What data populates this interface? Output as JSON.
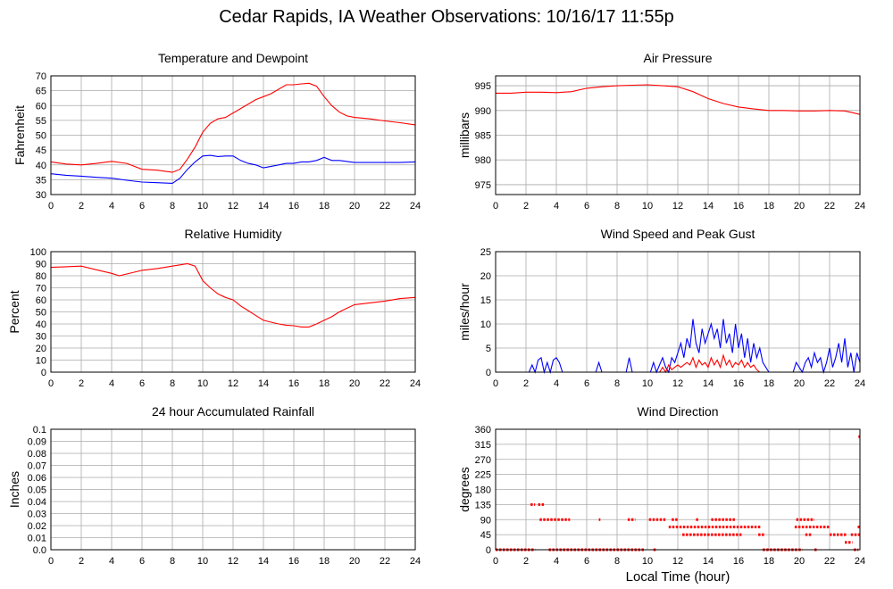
{
  "page": {
    "title": "Cedar Rapids, IA Weather Observations: 10/16/17 11:55p",
    "xlabel": "Local Time (hour)"
  },
  "colors": {
    "red": "#ff0000",
    "blue": "#0000ff",
    "grid": "#aaaaaa",
    "frame": "#000000"
  },
  "chart_data": [
    {
      "id": "temp",
      "type": "line",
      "title": "Temperature and Dewpoint",
      "ylabel": "Fahrenheit",
      "xlim": [
        0,
        24
      ],
      "ylim": [
        30,
        70
      ],
      "yticks": [
        30,
        35,
        40,
        45,
        50,
        55,
        60,
        65,
        70
      ],
      "xticks": [
        0,
        2,
        4,
        6,
        8,
        10,
        12,
        14,
        16,
        18,
        20,
        22,
        24
      ],
      "grid": true,
      "series": [
        {
          "color": "red",
          "x": [
            0,
            1,
            2,
            3,
            4,
            5,
            6,
            7,
            8,
            8.5,
            9,
            9.5,
            10,
            10.5,
            11,
            11.5,
            12,
            12.5,
            13,
            13.5,
            14,
            14.5,
            15,
            15.5,
            16,
            16.5,
            17,
            17.5,
            18,
            18.5,
            19,
            19.5,
            20,
            21,
            22,
            23,
            24
          ],
          "y": [
            41,
            40.3,
            40,
            40.5,
            41.2,
            40.5,
            38.5,
            38.2,
            37.5,
            38.5,
            42,
            46,
            51,
            54,
            55.5,
            56,
            57.5,
            59,
            60.5,
            62,
            63,
            64,
            65.5,
            67,
            67,
            67.3,
            67.5,
            66.5,
            63,
            60,
            57.8,
            56.5,
            56,
            55.5,
            54.8,
            54.2,
            53.5
          ]
        },
        {
          "color": "blue",
          "x": [
            0,
            1,
            2,
            3,
            4,
            5,
            6,
            7,
            8,
            8.5,
            9,
            9.5,
            10,
            10.5,
            11,
            11.5,
            12,
            12.5,
            13,
            13.5,
            14,
            14.5,
            15,
            15.5,
            16,
            16.5,
            17,
            17.5,
            18,
            18.5,
            19,
            20,
            21,
            22,
            23,
            24
          ],
          "y": [
            37,
            36.5,
            36.2,
            35.8,
            35.5,
            34.8,
            34.2,
            34,
            33.8,
            35.5,
            38.5,
            41,
            43,
            43.2,
            42.8,
            43,
            43,
            41.5,
            40.5,
            40,
            39,
            39.5,
            40,
            40.5,
            40.5,
            41,
            41,
            41.5,
            42.5,
            41.5,
            41.5,
            40.8,
            40.8,
            40.8,
            40.8,
            41
          ]
        }
      ]
    },
    {
      "id": "pressure",
      "type": "line",
      "title": "Air Pressure",
      "ylabel": "millibars",
      "xlim": [
        0,
        24
      ],
      "ylim": [
        973,
        997
      ],
      "yticks": [
        975,
        980,
        985,
        990,
        995
      ],
      "xticks": [
        0,
        2,
        4,
        6,
        8,
        10,
        12,
        14,
        16,
        18,
        20,
        22,
        24
      ],
      "grid": true,
      "series": [
        {
          "color": "red",
          "x": [
            0,
            1,
            2,
            3,
            4,
            5,
            6,
            7,
            8,
            9,
            10,
            11,
            12,
            13,
            14,
            15,
            16,
            17,
            18,
            19,
            20,
            21,
            22,
            23,
            24
          ],
          "y": [
            993.5,
            993.5,
            993.7,
            993.7,
            993.6,
            993.8,
            994.5,
            994.8,
            995,
            995.1,
            995.2,
            995,
            994.8,
            993.8,
            992.4,
            991.4,
            990.7,
            990.3,
            990,
            990,
            989.9,
            989.9,
            990,
            989.9,
            989.2
          ]
        }
      ]
    },
    {
      "id": "humidity",
      "type": "line",
      "title": "Relative Humidity",
      "ylabel": "Percent",
      "xlim": [
        0,
        24
      ],
      "ylim": [
        0,
        100
      ],
      "yticks": [
        0,
        10,
        20,
        30,
        40,
        50,
        60,
        70,
        80,
        90,
        100
      ],
      "xticks": [
        0,
        2,
        4,
        6,
        8,
        10,
        12,
        14,
        16,
        18,
        20,
        22,
        24
      ],
      "grid": true,
      "series": [
        {
          "color": "red",
          "x": [
            0,
            1,
            2,
            3,
            4,
            4.5,
            5,
            6,
            7,
            8,
            9,
            9.5,
            10,
            10.5,
            11,
            11.5,
            12,
            12.5,
            13,
            13.5,
            14,
            14.5,
            15,
            15.5,
            16,
            16.5,
            17,
            17.5,
            18,
            18.5,
            19,
            19.5,
            20,
            21,
            22,
            23,
            24
          ],
          "y": [
            87,
            87.5,
            88,
            85,
            82,
            80,
            81.5,
            84.5,
            86,
            88,
            90,
            88,
            76,
            70,
            65,
            62,
            60,
            55,
            51,
            47,
            43,
            41.5,
            40,
            39,
            38.5,
            37.5,
            37.5,
            40,
            43,
            46,
            50,
            53,
            56,
            57.5,
            59,
            61,
            62
          ]
        }
      ]
    },
    {
      "id": "wind",
      "type": "line",
      "title": "Wind Speed and Peak Gust",
      "ylabel": "miles/hour",
      "xlim": [
        0,
        24
      ],
      "ylim": [
        0,
        25
      ],
      "yticks": [
        0,
        5,
        10,
        15,
        20,
        25
      ],
      "xticks": [
        0,
        2,
        4,
        6,
        8,
        10,
        12,
        14,
        16,
        18,
        20,
        22,
        24
      ],
      "grid": true,
      "series": [
        {
          "color": "blue",
          "x": [
            0,
            2.2,
            2.4,
            2.6,
            2.8,
            3,
            3.2,
            3.4,
            3.6,
            3.8,
            4,
            4.2,
            4.4,
            4.6,
            6.6,
            6.8,
            7,
            8.6,
            8.8,
            9,
            10.2,
            10.4,
            10.6,
            10.8,
            11,
            11.2,
            11.4,
            11.6,
            11.8,
            12,
            12.2,
            12.4,
            12.6,
            12.8,
            13,
            13.2,
            13.4,
            13.6,
            13.8,
            14,
            14.2,
            14.4,
            14.6,
            14.8,
            15,
            15.2,
            15.4,
            15.6,
            15.8,
            16,
            16.2,
            16.4,
            16.6,
            16.8,
            17,
            17.2,
            17.4,
            17.6,
            17.8,
            18,
            19.6,
            19.8,
            20,
            20.2,
            20.4,
            20.6,
            20.8,
            21,
            21.2,
            21.4,
            21.6,
            21.8,
            22,
            22.2,
            22.4,
            22.6,
            22.8,
            23,
            23.2,
            23.4,
            23.6,
            23.8,
            24
          ],
          "y": [
            0,
            0,
            1.5,
            0,
            2.5,
            3,
            0,
            2,
            0,
            2.5,
            3,
            2,
            0,
            0,
            0,
            2,
            0,
            0,
            3,
            0,
            0,
            2,
            0,
            1.5,
            3,
            1,
            0,
            3,
            2,
            4,
            6,
            3,
            7,
            5,
            11,
            6,
            4,
            9,
            6,
            8,
            10,
            7,
            9,
            5,
            11,
            6,
            8,
            4,
            10,
            5,
            8,
            3,
            7,
            2,
            6,
            3,
            5,
            2,
            1,
            0,
            0,
            2,
            1,
            0,
            2,
            3,
            1,
            4,
            2,
            3,
            0,
            2,
            5,
            1,
            3,
            6,
            2,
            7,
            1,
            4,
            0,
            4,
            2
          ]
        },
        {
          "color": "red",
          "x": [
            0,
            10.8,
            11,
            11.2,
            11.4,
            11.6,
            11.8,
            12,
            12.2,
            12.4,
            12.6,
            12.8,
            13,
            13.2,
            13.4,
            13.6,
            13.8,
            14,
            14.2,
            14.4,
            14.6,
            14.8,
            15,
            15.2,
            15.4,
            15.6,
            15.8,
            16,
            16.2,
            16.4,
            16.6,
            16.8,
            17,
            17.2,
            17.4,
            24
          ],
          "y": [
            0,
            0,
            1,
            0,
            1.5,
            0.5,
            1,
            1.5,
            1,
            1.5,
            2,
            1.5,
            3,
            1,
            2.5,
            1.5,
            2,
            1,
            3,
            1.5,
            2.5,
            1,
            3.5,
            1.5,
            2.5,
            1,
            2,
            1.5,
            2.5,
            1,
            2,
            1,
            1.5,
            0.5,
            0,
            0
          ]
        }
      ]
    },
    {
      "id": "rain",
      "type": "line",
      "title": "24 hour Accumulated Rainfall",
      "ylabel": "Inches",
      "xlim": [
        0,
        24
      ],
      "ylim": [
        0,
        0.1
      ],
      "yticks": [
        0.0,
        0.01,
        0.02,
        0.03,
        0.04,
        0.05,
        0.06,
        0.07,
        0.08,
        0.09,
        0.1
      ],
      "ytick_labels": [
        "0.0",
        "0.01",
        "0.02",
        "0.03",
        "0.04",
        "0.05",
        "0.06",
        "0.07",
        "0.08",
        "0.09",
        "0.1"
      ],
      "xticks": [
        0,
        2,
        4,
        6,
        8,
        10,
        12,
        14,
        16,
        18,
        20,
        22,
        24
      ],
      "grid": true,
      "series": [
        {
          "color": "red",
          "x": [
            0,
            24
          ],
          "y": [
            0,
            0
          ]
        }
      ]
    },
    {
      "id": "winddir",
      "type": "scatter",
      "title": "Wind Direction",
      "ylabel": "degrees",
      "xlim": [
        0,
        24
      ],
      "ylim": [
        0,
        360
      ],
      "yticks": [
        0,
        45,
        90,
        135,
        180,
        225,
        270,
        315,
        360
      ],
      "xticks": [
        0,
        2,
        4,
        6,
        8,
        10,
        12,
        14,
        16,
        18,
        20,
        22,
        24
      ],
      "grid": true,
      "series": [
        {
          "color": "red",
          "segments": [
            {
              "x0": 0,
              "x1": 2.6,
              "y": 0
            },
            {
              "x0": 2.3,
              "x1": 2.6,
              "y": 135
            },
            {
              "x0": 2.8,
              "x1": 3.2,
              "y": 135
            },
            {
              "x0": 2.9,
              "x1": 4.9,
              "y": 90
            },
            {
              "x0": 3.5,
              "x1": 9.8,
              "y": 0
            },
            {
              "x0": 6.8,
              "x1": 6.9,
              "y": 90
            },
            {
              "x0": 8.7,
              "x1": 9.2,
              "y": 90
            },
            {
              "x0": 10.1,
              "x1": 11.2,
              "y": 90
            },
            {
              "x0": 10.4,
              "x1": 10.6,
              "y": 0
            },
            {
              "x0": 11.4,
              "x1": 17.5,
              "y": 68
            },
            {
              "x0": 11.6,
              "x1": 12.0,
              "y": 90
            },
            {
              "x0": 12.3,
              "x1": 16.2,
              "y": 45
            },
            {
              "x0": 13.2,
              "x1": 13.4,
              "y": 90
            },
            {
              "x0": 14.2,
              "x1": 15.8,
              "y": 90
            },
            {
              "x0": 17.3,
              "x1": 17.7,
              "y": 45
            },
            {
              "x0": 17.6,
              "x1": 20.2,
              "y": 0
            },
            {
              "x0": 19.7,
              "x1": 22.0,
              "y": 68
            },
            {
              "x0": 19.8,
              "x1": 21.0,
              "y": 90
            },
            {
              "x0": 20.4,
              "x1": 20.8,
              "y": 45
            },
            {
              "x0": 21.0,
              "x1": 21.2,
              "y": 0
            },
            {
              "x0": 22.0,
              "x1": 23.1,
              "y": 45
            },
            {
              "x0": 23.0,
              "x1": 23.5,
              "y": 22
            },
            {
              "x0": 23.4,
              "x1": 24.0,
              "y": 45
            },
            {
              "x0": 23.6,
              "x1": 23.9,
              "y": 0
            },
            {
              "x0": 23.85,
              "x1": 24.0,
              "y": 68
            },
            {
              "x0": 23.9,
              "x1": 24.0,
              "y": 338
            }
          ]
        }
      ]
    }
  ]
}
